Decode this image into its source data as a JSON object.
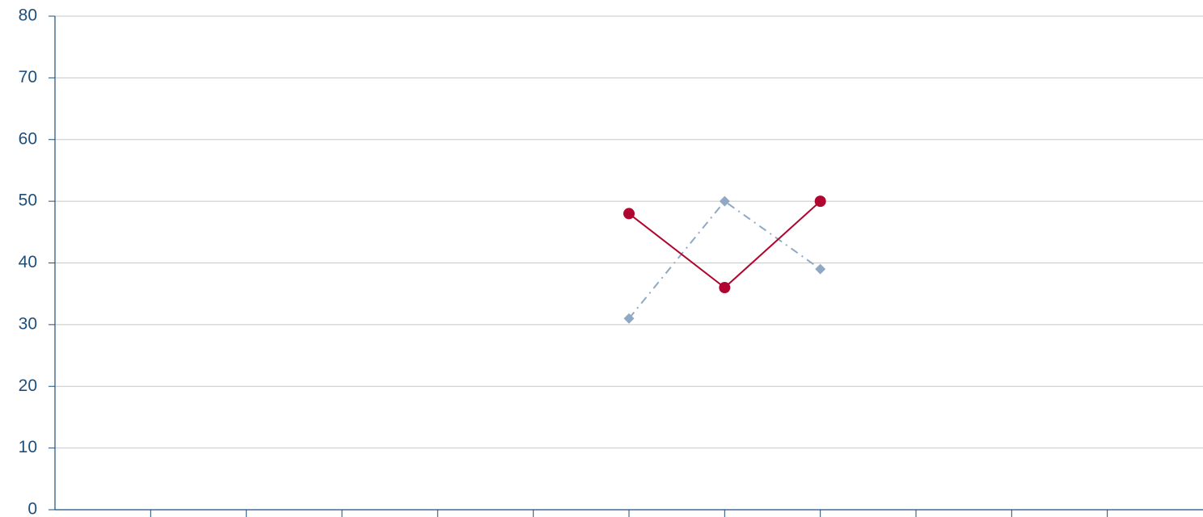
{
  "chart_data": {
    "type": "line",
    "title": "",
    "xlabel": "",
    "ylabel": "",
    "ylim": [
      0,
      80
    ],
    "yticks": [
      0,
      10,
      20,
      30,
      40,
      50,
      60,
      70,
      80
    ],
    "x_slots": 12,
    "grid": "horizontal",
    "legend": "none",
    "colors": {
      "axis": "#1f4e79",
      "grid": "#c8c8c8",
      "tick_text": "#1f4e79"
    },
    "series": [
      {
        "x": [
          6,
          7,
          8
        ],
        "values": [
          31,
          50,
          39
        ],
        "color": "#8fa9c4",
        "line_style": "dash-dot",
        "marker": "diamond"
      },
      {
        "x": [
          6,
          7,
          8
        ],
        "values": [
          48,
          36,
          50
        ],
        "color": "#b0052f",
        "line_style": "solid",
        "marker": "circle"
      }
    ]
  }
}
